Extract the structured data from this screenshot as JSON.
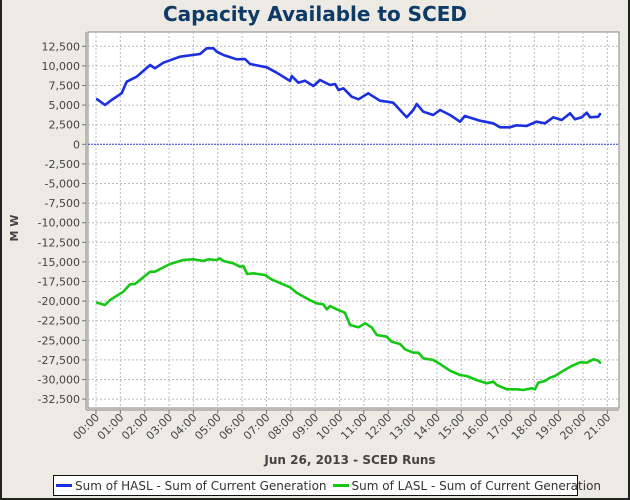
{
  "chart_data": {
    "type": "line",
    "title": "Capacity Available to SCED",
    "xlabel": "Jun 26, 2013 - SCED Runs",
    "ylabel": "M W",
    "xlim": [
      -0.3,
      21.5
    ],
    "ylim": [
      -35000,
      13800
    ],
    "grid": true,
    "legend_position": "bottom",
    "x_ticks": [
      {
        "value": 0,
        "label": "00:00"
      },
      {
        "value": 1,
        "label": "01:00"
      },
      {
        "value": 2,
        "label": "02:00"
      },
      {
        "value": 3,
        "label": "03:00"
      },
      {
        "value": 4,
        "label": "04:00"
      },
      {
        "value": 5,
        "label": "05:00"
      },
      {
        "value": 6,
        "label": "06:00"
      },
      {
        "value": 7,
        "label": "07:00"
      },
      {
        "value": 8,
        "label": "08:00"
      },
      {
        "value": 9,
        "label": "09:00"
      },
      {
        "value": 10,
        "label": "10:00"
      },
      {
        "value": 11,
        "label": "11:00"
      },
      {
        "value": 12,
        "label": "12:00"
      },
      {
        "value": 13,
        "label": "13:00"
      },
      {
        "value": 14,
        "label": "14:00"
      },
      {
        "value": 15,
        "label": "15:00"
      },
      {
        "value": 16,
        "label": "16:00"
      },
      {
        "value": 17,
        "label": "17:00"
      },
      {
        "value": 18,
        "label": "18:00"
      },
      {
        "value": 19,
        "label": "19:00"
      },
      {
        "value": 20,
        "label": "20:00"
      },
      {
        "value": 21,
        "label": "21:00"
      }
    ],
    "y_ticks": [
      {
        "value": 12500,
        "label": "12,500"
      },
      {
        "value": 10000,
        "label": "10,000"
      },
      {
        "value": 7500,
        "label": "7,500"
      },
      {
        "value": 5000,
        "label": "5,000"
      },
      {
        "value": 2500,
        "label": "2,500"
      },
      {
        "value": 0,
        "label": "0"
      },
      {
        "value": -2500,
        "label": "-2,500"
      },
      {
        "value": -5000,
        "label": "-5,000"
      },
      {
        "value": -7500,
        "label": "-7,500"
      },
      {
        "value": -10000,
        "label": "-10,000"
      },
      {
        "value": -12500,
        "label": "-12,500"
      },
      {
        "value": -15000,
        "label": "-15,000"
      },
      {
        "value": -17500,
        "label": "-17,500"
      },
      {
        "value": -20000,
        "label": "-20,000"
      },
      {
        "value": -22500,
        "label": "-22,500"
      },
      {
        "value": -25000,
        "label": "-25,000"
      },
      {
        "value": -27500,
        "label": "-27,500"
      },
      {
        "value": -30000,
        "label": "-30,000"
      },
      {
        "value": -32500,
        "label": "-32,500"
      }
    ],
    "zero_line": {
      "value": 0,
      "color": "#2b3bd8"
    },
    "series": [
      {
        "name": "Sum of HASL - Sum of Current Generation",
        "color": "#1a2fe0",
        "points": [
          [
            0.05,
            5740
          ],
          [
            0.37,
            5010
          ],
          [
            0.64,
            5650
          ],
          [
            1.05,
            6500
          ],
          [
            1.26,
            7990
          ],
          [
            1.67,
            8620
          ],
          [
            2.22,
            10110
          ],
          [
            2.42,
            9690
          ],
          [
            2.77,
            10410
          ],
          [
            3.45,
            11170
          ],
          [
            4.27,
            11520
          ],
          [
            4.55,
            12240
          ],
          [
            4.82,
            12240
          ],
          [
            4.96,
            11810
          ],
          [
            5.23,
            11390
          ],
          [
            5.78,
            10840
          ],
          [
            6.12,
            10880
          ],
          [
            6.33,
            10240
          ],
          [
            7.01,
            9820
          ],
          [
            7.42,
            9130
          ],
          [
            7.97,
            8070
          ],
          [
            8.04,
            8710
          ],
          [
            8.31,
            7860
          ],
          [
            8.58,
            8110
          ],
          [
            8.93,
            7440
          ],
          [
            9.2,
            8200
          ],
          [
            9.61,
            7560
          ],
          [
            9.82,
            7690
          ],
          [
            9.96,
            6930
          ],
          [
            10.16,
            7140
          ],
          [
            10.5,
            6070
          ],
          [
            10.78,
            5740
          ],
          [
            11.18,
            6500
          ],
          [
            11.66,
            5560
          ],
          [
            12.21,
            5310
          ],
          [
            12.76,
            3440
          ],
          [
            13.03,
            4370
          ],
          [
            13.17,
            5140
          ],
          [
            13.44,
            4160
          ],
          [
            13.85,
            3740
          ],
          [
            14.13,
            4370
          ],
          [
            14.54,
            3740
          ],
          [
            14.95,
            2880
          ],
          [
            15.15,
            3610
          ],
          [
            15.77,
            3010
          ],
          [
            16.31,
            2680
          ],
          [
            16.59,
            2170
          ],
          [
            17.0,
            2170
          ],
          [
            17.27,
            2420
          ],
          [
            17.68,
            2330
          ],
          [
            18.09,
            2880
          ],
          [
            18.44,
            2680
          ],
          [
            18.78,
            3440
          ],
          [
            19.12,
            3100
          ],
          [
            19.47,
            3950
          ],
          [
            19.67,
            3190
          ],
          [
            19.95,
            3440
          ],
          [
            20.15,
            4030
          ],
          [
            20.29,
            3440
          ],
          [
            20.63,
            3520
          ],
          [
            20.7,
            3860
          ]
        ]
      },
      {
        "name": "Sum of LASL - Sum of Current Generation",
        "color": "#14c814",
        "points": [
          [
            0.05,
            -20200
          ],
          [
            0.37,
            -20500
          ],
          [
            0.58,
            -19860
          ],
          [
            1.12,
            -18800
          ],
          [
            1.4,
            -17860
          ],
          [
            1.6,
            -17820
          ],
          [
            2.22,
            -16250
          ],
          [
            2.42,
            -16250
          ],
          [
            3.04,
            -15270
          ],
          [
            3.59,
            -14760
          ],
          [
            4.0,
            -14670
          ],
          [
            4.41,
            -14890
          ],
          [
            4.61,
            -14670
          ],
          [
            4.96,
            -14760
          ],
          [
            5.09,
            -14540
          ],
          [
            5.23,
            -14890
          ],
          [
            5.64,
            -15180
          ],
          [
            5.91,
            -15610
          ],
          [
            6.05,
            -15520
          ],
          [
            6.21,
            -16540
          ],
          [
            6.46,
            -16450
          ],
          [
            6.94,
            -16670
          ],
          [
            7.2,
            -17220
          ],
          [
            7.97,
            -18240
          ],
          [
            8.24,
            -18930
          ],
          [
            8.72,
            -19770
          ],
          [
            9.06,
            -20280
          ],
          [
            9.33,
            -20410
          ],
          [
            9.48,
            -21050
          ],
          [
            9.61,
            -20630
          ],
          [
            9.88,
            -21050
          ],
          [
            10.22,
            -21480
          ],
          [
            10.43,
            -23050
          ],
          [
            10.78,
            -23340
          ],
          [
            11.05,
            -22830
          ],
          [
            11.32,
            -23340
          ],
          [
            11.53,
            -24320
          ],
          [
            11.94,
            -24540
          ],
          [
            12.14,
            -25180
          ],
          [
            12.49,
            -25470
          ],
          [
            12.69,
            -26150
          ],
          [
            13.03,
            -26580
          ],
          [
            13.24,
            -26580
          ],
          [
            13.44,
            -27300
          ],
          [
            13.85,
            -27510
          ],
          [
            14.13,
            -28020
          ],
          [
            14.54,
            -28880
          ],
          [
            14.95,
            -29430
          ],
          [
            15.22,
            -29550
          ],
          [
            15.63,
            -30060
          ],
          [
            16.04,
            -30490
          ],
          [
            16.32,
            -30280
          ],
          [
            16.46,
            -30700
          ],
          [
            16.87,
            -31250
          ],
          [
            17.28,
            -31250
          ],
          [
            17.55,
            -31340
          ],
          [
            17.89,
            -31120
          ],
          [
            18.03,
            -31250
          ],
          [
            18.16,
            -30410
          ],
          [
            18.44,
            -30190
          ],
          [
            18.64,
            -29770
          ],
          [
            18.85,
            -29550
          ],
          [
            19.19,
            -28880
          ],
          [
            19.53,
            -28280
          ],
          [
            19.88,
            -27810
          ],
          [
            20.15,
            -27860
          ],
          [
            20.43,
            -27420
          ],
          [
            20.63,
            -27600
          ],
          [
            20.7,
            -27860
          ]
        ]
      }
    ]
  }
}
